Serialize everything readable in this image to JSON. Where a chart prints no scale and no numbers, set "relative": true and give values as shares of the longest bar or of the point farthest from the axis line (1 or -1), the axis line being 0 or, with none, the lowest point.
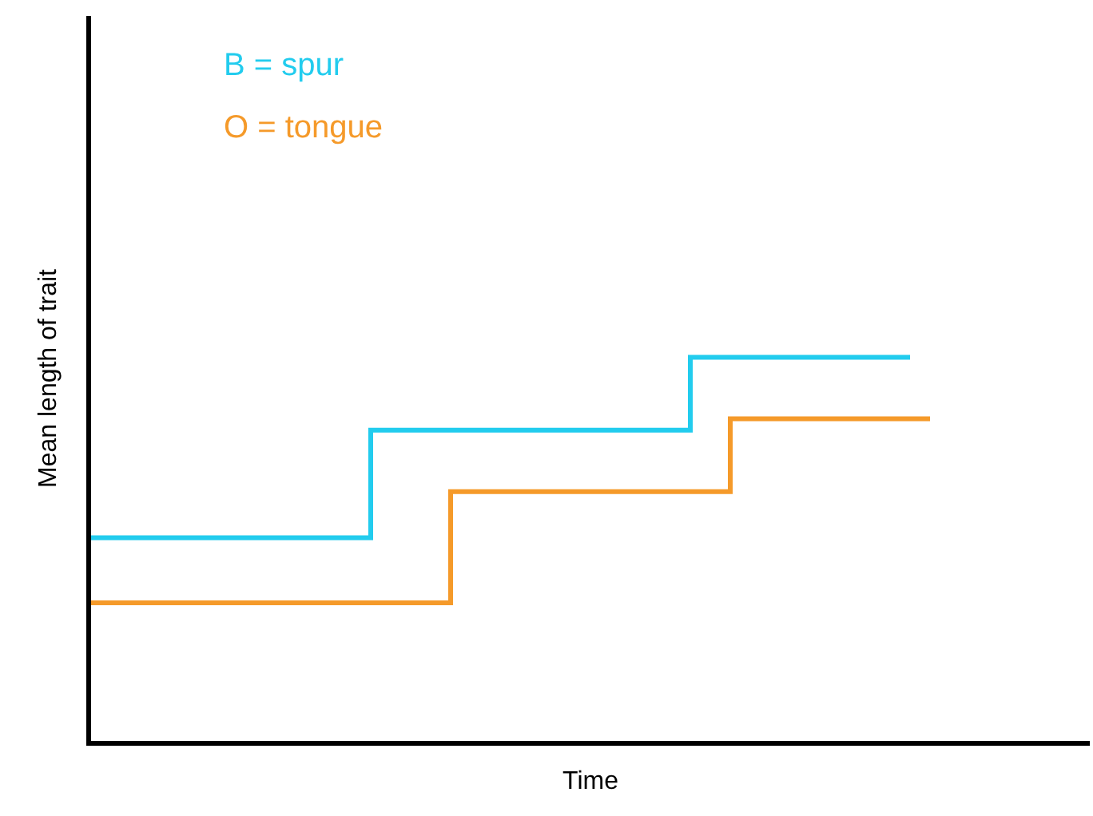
{
  "chart_data": {
    "type": "step",
    "relative": true,
    "xlabel": "Time",
    "ylabel": "Mean length of trait",
    "categories": [
      null,
      null,
      null,
      null,
      null,
      null,
      null,
      null,
      null,
      null,
      null,
      null,
      null,
      null,
      null,
      null,
      null,
      null,
      null,
      null,
      null,
      null,
      null,
      null,
      null,
      null,
      null,
      null,
      null,
      null,
      null,
      null,
      null,
      null,
      null,
      null,
      null,
      null,
      null,
      null,
      null,
      null,
      null,
      null,
      null,
      null,
      null,
      null,
      null,
      null,
      null
    ],
    "series": [
      {
        "name": "B = spur",
        "color": "#22ccee",
        "values": [
          0.53,
          0.53,
          0.53,
          0.53,
          0.53,
          0.53,
          0.53,
          0.53,
          0.53,
          0.53,
          0.53,
          0.53,
          0.53,
          0.53,
          0.81,
          0.81,
          0.81,
          0.81,
          0.81,
          0.81,
          0.81,
          0.81,
          0.81,
          0.81,
          0.81,
          0.81,
          0.81,
          0.81,
          0.81,
          0.81,
          1,
          1,
          1,
          1,
          1,
          1,
          1,
          1,
          1,
          1,
          1,
          1,
          null,
          null,
          null,
          null,
          null,
          null,
          null,
          null,
          null
        ]
      },
      {
        "name": "O = tongue",
        "color": "#f59a2a",
        "values": [
          0.36,
          0.36,
          0.36,
          0.36,
          0.36,
          0.36,
          0.36,
          0.36,
          0.36,
          0.36,
          0.36,
          0.36,
          0.36,
          0.36,
          0.36,
          0.36,
          0.36,
          0.36,
          0.65,
          0.65,
          0.65,
          0.65,
          0.65,
          0.65,
          0.65,
          0.65,
          0.65,
          0.65,
          0.65,
          0.65,
          0.65,
          0.65,
          0.84,
          0.84,
          0.84,
          0.84,
          0.84,
          0.84,
          0.84,
          0.84,
          0.84,
          0.84,
          0.84,
          null,
          null,
          null,
          null,
          null,
          null,
          null,
          null
        ]
      }
    ],
    "legend": false
  }
}
